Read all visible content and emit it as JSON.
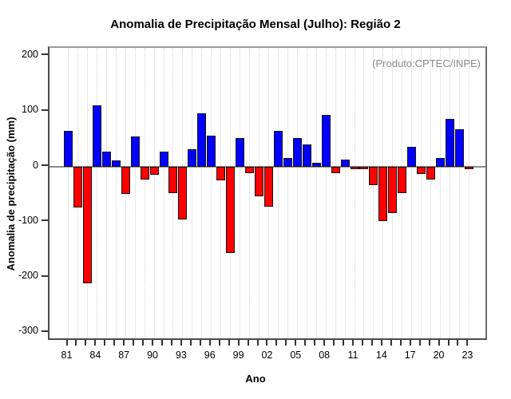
{
  "title": "Anomalia de Precipitação Mensal (Julho): Região 2",
  "annotation": "(Produto:CPTEC/INPE)",
  "colors": {
    "positive_bar": "#0000ff",
    "negative_bar": "#ff0000",
    "bar_border": "#141414",
    "annotation_text": "#8a8a8a",
    "grid": "#d2d2d2",
    "zero_line": "#8a8a8a"
  },
  "chart_data": {
    "type": "bar",
    "title": "Anomalia de Precipitação Mensal (Julho): Região 2",
    "xlabel": "Ano",
    "ylabel": "Anomalia de precipitação (mm)",
    "annotation": "(Produto:CPTEC/INPE)",
    "years": [
      1981,
      1982,
      1983,
      1984,
      1985,
      1986,
      1987,
      1988,
      1989,
      1990,
      1991,
      1992,
      1993,
      1994,
      1995,
      1996,
      1997,
      1998,
      1999,
      2000,
      2001,
      2002,
      2003,
      2004,
      2005,
      2006,
      2007,
      2008,
      2009,
      2010,
      2011,
      2012,
      2013,
      2014,
      2015,
      2016,
      2017,
      2018,
      2019,
      2020,
      2021,
      2022,
      2023
    ],
    "values": [
      65,
      -73,
      -211,
      111,
      28,
      12,
      -49,
      55,
      -23,
      -14,
      28,
      -48,
      -95,
      32,
      97,
      56,
      -25,
      -156,
      52,
      -11,
      -54,
      -72,
      65,
      16,
      52,
      41,
      7,
      94,
      -11,
      13,
      -5,
      -4,
      -33,
      -98,
      -83,
      -47,
      36,
      -13,
      -23,
      16,
      86,
      68,
      -5
    ],
    "x_tick_labels": [
      "81",
      "84",
      "87",
      "90",
      "93",
      "96",
      "99",
      "02",
      "05",
      "08",
      "11",
      "14",
      "17",
      "20",
      "23"
    ],
    "x_label_step": 3,
    "y_ticks": [
      200,
      100,
      0,
      -100,
      -200,
      -300
    ],
    "ylim": [
      -316,
      215
    ],
    "grid": "vertical-dotted",
    "legend": "none",
    "positive_color_meaning": "anomalia positiva",
    "negative_color_meaning": "anomalia negativa"
  }
}
